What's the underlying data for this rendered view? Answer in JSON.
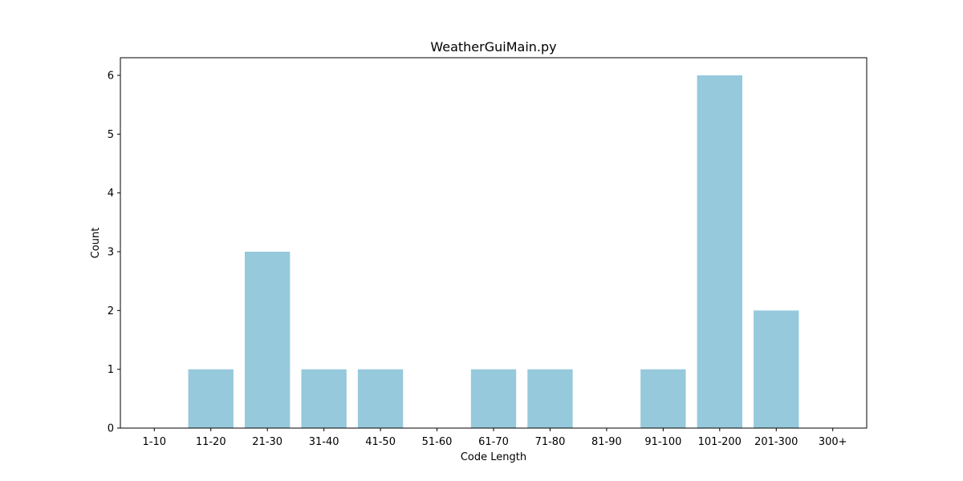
{
  "chart_data": {
    "type": "bar",
    "title": "WeatherGuiMain.py",
    "xlabel": "Code Length",
    "ylabel": "Count",
    "categories": [
      "1-10",
      "11-20",
      "21-30",
      "31-40",
      "41-50",
      "51-60",
      "61-70",
      "71-80",
      "81-90",
      "91-100",
      "101-200",
      "201-300",
      "300+"
    ],
    "values": [
      0,
      1,
      3,
      1,
      1,
      0,
      1,
      1,
      0,
      1,
      6,
      2,
      0
    ],
    "ylim": [
      0,
      6.3
    ],
    "yticks": [
      "0",
      "1",
      "2",
      "3",
      "4",
      "5",
      "6"
    ],
    "grid": false,
    "legend": "none",
    "colors": {
      "bar": "#96c9dc",
      "axis": "#000000",
      "text": "#000000",
      "background": "#ffffff"
    }
  }
}
